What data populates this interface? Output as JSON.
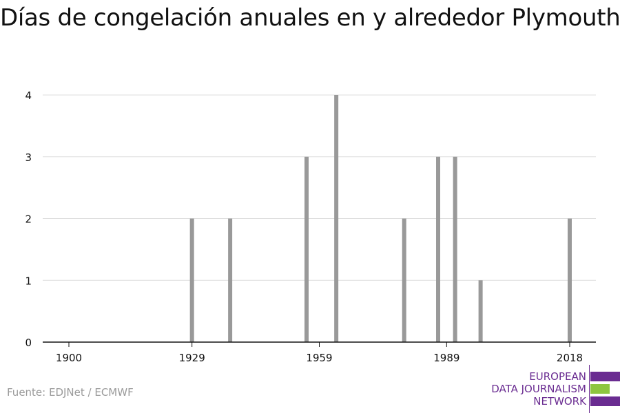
{
  "title": "Días de congelación anuales en y alrededor Plymouth",
  "source": "Fuente: EDJNet / ECMWF",
  "logo": {
    "lines": [
      "EUROPEAN",
      "DATA JOURNALISM",
      "NETWORK"
    ],
    "colors": {
      "primary": "#6a2c91",
      "accent": "#8dc63f"
    }
  },
  "chart_data": {
    "type": "bar",
    "title": "Días de congelación anuales en y alrededor Plymouth",
    "xlabel": "",
    "ylabel": "",
    "x_ticks": [
      1900,
      1929,
      1959,
      1989,
      2018
    ],
    "y_ticks": [
      0,
      1,
      2,
      3,
      4
    ],
    "xlim": [
      1900,
      2018
    ],
    "ylim": [
      0,
      4
    ],
    "grid": true,
    "bar_color": "#999999",
    "x": [
      1929,
      1938,
      1956,
      1963,
      1979,
      1987,
      1991,
      1997,
      2018
    ],
    "values": [
      2,
      2,
      3,
      4,
      2,
      3,
      3,
      1,
      2
    ]
  }
}
